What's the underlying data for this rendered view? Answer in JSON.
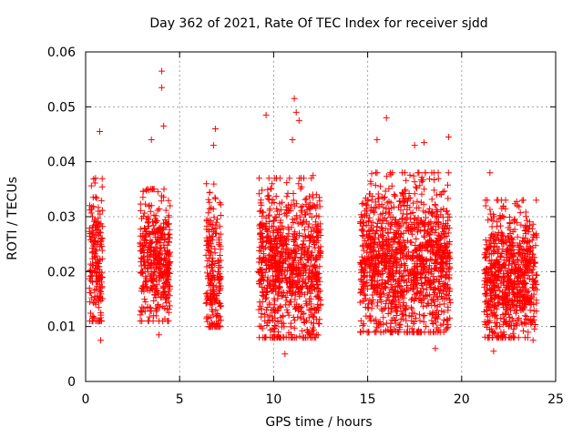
{
  "chart_data": {
    "type": "scatter",
    "title": "Day 362 of 2021, Rate Of TEC Index for receiver sjdd",
    "xlabel": "GPS time / hours",
    "ylabel": "ROTI / TECUs",
    "xlim": [
      0,
      25
    ],
    "ylim": [
      0,
      0.06
    ],
    "xticks": [
      "0",
      "5",
      "10",
      "15",
      "20",
      "25"
    ],
    "yticks": [
      "0",
      "0.01",
      "0.02",
      "0.03",
      "0.04",
      "0.05",
      "0.06"
    ],
    "grid": true,
    "marker": "+",
    "color": "#ff0000",
    "series": [
      {
        "name": "ROTI",
        "clusters": [
          {
            "x_start": 0.2,
            "x_end": 0.9,
            "y_low": 0.011,
            "y_high": 0.037,
            "y_mean": 0.022
          },
          {
            "x_start": 2.9,
            "x_end": 4.5,
            "y_low": 0.011,
            "y_high": 0.035,
            "y_mean": 0.022
          },
          {
            "x_start": 6.4,
            "x_end": 7.2,
            "y_low": 0.01,
            "y_high": 0.036,
            "y_mean": 0.02
          },
          {
            "x_start": 9.2,
            "x_end": 12.5,
            "y_low": 0.008,
            "y_high": 0.037,
            "y_mean": 0.021
          },
          {
            "x_start": 14.6,
            "x_end": 19.4,
            "y_low": 0.009,
            "y_high": 0.038,
            "y_mean": 0.022
          },
          {
            "x_start": 21.2,
            "x_end": 24.0,
            "y_low": 0.008,
            "y_high": 0.033,
            "y_mean": 0.019
          }
        ],
        "notable_points": [
          {
            "x": 0.75,
            "y": 0.0455
          },
          {
            "x": 0.8,
            "y": 0.0075
          },
          {
            "x": 4.05,
            "y": 0.0565
          },
          {
            "x": 4.05,
            "y": 0.0535
          },
          {
            "x": 4.15,
            "y": 0.0465
          },
          {
            "x": 3.5,
            "y": 0.044
          },
          {
            "x": 3.9,
            "y": 0.0085
          },
          {
            "x": 6.9,
            "y": 0.046
          },
          {
            "x": 6.8,
            "y": 0.043
          },
          {
            "x": 9.6,
            "y": 0.0485
          },
          {
            "x": 11.1,
            "y": 0.0515
          },
          {
            "x": 11.2,
            "y": 0.049
          },
          {
            "x": 11.35,
            "y": 0.0475
          },
          {
            "x": 11.0,
            "y": 0.044
          },
          {
            "x": 12.1,
            "y": 0.0375
          },
          {
            "x": 10.6,
            "y": 0.005
          },
          {
            "x": 16.0,
            "y": 0.048
          },
          {
            "x": 15.5,
            "y": 0.044
          },
          {
            "x": 17.5,
            "y": 0.043
          },
          {
            "x": 19.3,
            "y": 0.0445
          },
          {
            "x": 18.0,
            "y": 0.0435
          },
          {
            "x": 18.6,
            "y": 0.006
          },
          {
            "x": 21.5,
            "y": 0.038
          },
          {
            "x": 23.8,
            "y": 0.0075
          },
          {
            "x": 21.7,
            "y": 0.0055
          }
        ]
      }
    ]
  }
}
